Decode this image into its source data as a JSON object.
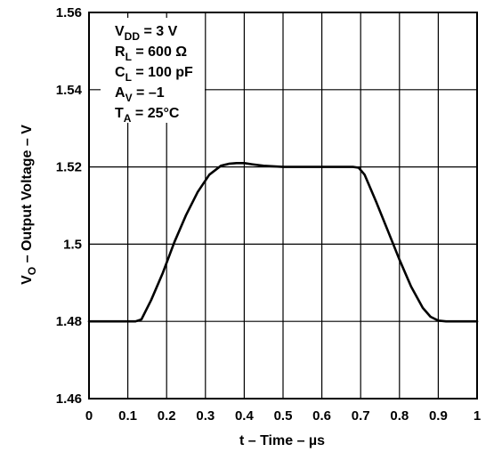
{
  "chart_data": {
    "type": "line",
    "title": "",
    "xlabel": "t – Time – µs",
    "ylabel_main": "V",
    "ylabel_sub": "O",
    "ylabel_rest": " – Output Voltage – V",
    "xlim": [
      0,
      1
    ],
    "ylim": [
      1.46,
      1.56
    ],
    "x_ticks": [
      0,
      0.1,
      0.2,
      0.3,
      0.4,
      0.5,
      0.6,
      0.7,
      0.8,
      0.9,
      1
    ],
    "x_tick_labels": [
      "0",
      "0.1",
      "0.2",
      "0.3",
      "0.4",
      "0.5",
      "0.6",
      "0.7",
      "0.8",
      "0.9",
      "1"
    ],
    "y_ticks": [
      1.46,
      1.48,
      1.5,
      1.52,
      1.54,
      1.56
    ],
    "y_tick_labels": [
      "1.46",
      "1.48",
      "1.5",
      "1.52",
      "1.54",
      "1.56"
    ],
    "grid": true,
    "series": [
      {
        "color": "#000000",
        "x": [
          0,
          0.12,
          0.135,
          0.16,
          0.19,
          0.22,
          0.25,
          0.28,
          0.31,
          0.34,
          0.36,
          0.38,
          0.4,
          0.42,
          0.45,
          0.5,
          0.55,
          0.6,
          0.65,
          0.68,
          0.695,
          0.71,
          0.74,
          0.77,
          0.8,
          0.83,
          0.86,
          0.88,
          0.9,
          0.92,
          0.95,
          1
        ],
        "y": [
          1.48,
          1.48,
          1.4805,
          1.4855,
          1.4925,
          1.5005,
          1.5075,
          1.5135,
          1.518,
          1.5203,
          1.5208,
          1.521,
          1.521,
          1.5207,
          1.5203,
          1.52,
          1.52,
          1.52,
          1.52,
          1.52,
          1.5198,
          1.518,
          1.511,
          1.5035,
          1.496,
          1.489,
          1.4835,
          1.4812,
          1.4802,
          1.48,
          1.48,
          1.48
        ]
      }
    ],
    "annotations": [
      {
        "main": "V",
        "sub": "DD",
        "rest": " = 3 V"
      },
      {
        "main": "R",
        "sub": "L",
        "rest": " = 600 Ω"
      },
      {
        "main": "C",
        "sub": "L",
        "rest": " = 100  pF"
      },
      {
        "main": "A",
        "sub": "V",
        "rest": " = –1"
      },
      {
        "main": "T",
        "sub": "A",
        "rest": " = 25°C"
      }
    ]
  }
}
